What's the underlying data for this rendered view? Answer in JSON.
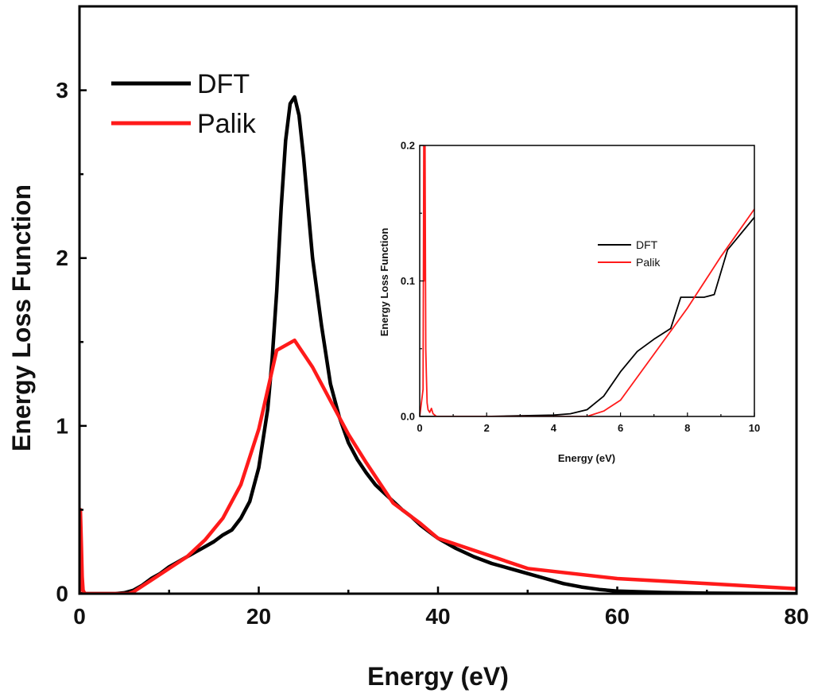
{
  "chart_data": [
    {
      "id": "main",
      "type": "line",
      "title": "",
      "xlabel": "Energy (eV)",
      "ylabel": "Energy Loss Function",
      "xlim": [
        0,
        80
      ],
      "ylim": [
        0,
        3.5
      ],
      "xticks": [
        0,
        20,
        40,
        60,
        80
      ],
      "xtick_labels": [
        "0",
        "20",
        "40",
        "60",
        "80"
      ],
      "yticks": [
        0,
        1,
        2,
        3
      ],
      "ytick_labels": [
        "0",
        "1",
        "2",
        "3"
      ],
      "grid": false,
      "legend_position": "top-left",
      "series": [
        {
          "name": "DFT",
          "color": "#000000",
          "x": [
            0,
            4,
            5,
            6,
            7,
            8,
            9,
            10,
            11,
            12,
            13,
            14,
            15,
            16,
            17,
            18,
            19,
            20,
            21,
            21.5,
            22,
            22.5,
            23,
            23.5,
            24,
            24.5,
            25,
            25.5,
            26,
            27,
            28,
            29,
            30,
            31,
            32,
            33,
            34,
            35,
            36,
            37,
            38,
            39,
            40,
            42,
            44,
            46,
            48,
            50,
            52,
            54,
            56,
            58,
            60,
            65,
            70,
            75,
            80
          ],
          "y": [
            0,
            0,
            0.005,
            0.02,
            0.05,
            0.09,
            0.12,
            0.16,
            0.19,
            0.22,
            0.25,
            0.28,
            0.31,
            0.35,
            0.38,
            0.45,
            0.55,
            0.75,
            1.1,
            1.4,
            1.8,
            2.3,
            2.7,
            2.92,
            2.96,
            2.85,
            2.6,
            2.3,
            2.0,
            1.6,
            1.25,
            1.05,
            0.9,
            0.8,
            0.72,
            0.65,
            0.6,
            0.55,
            0.5,
            0.46,
            0.41,
            0.37,
            0.33,
            0.27,
            0.22,
            0.18,
            0.15,
            0.12,
            0.09,
            0.06,
            0.04,
            0.025,
            0.015,
            0.007,
            0.003,
            0.001,
            0
          ]
        },
        {
          "name": "Palik",
          "color": "#ff1a1a",
          "x": [
            0,
            0.1,
            0.2,
            0.3,
            0.4,
            0.6,
            1,
            3,
            5.5,
            6,
            8,
            10,
            12,
            14,
            16,
            18,
            20,
            22,
            24,
            26,
            28,
            30,
            32,
            34,
            35,
            38,
            40,
            45,
            50,
            60,
            70,
            80
          ],
          "y": [
            0,
            0.5,
            0.3,
            0.1,
            0.02,
            0,
            0,
            0,
            0,
            0.01,
            0.08,
            0.15,
            0.22,
            0.32,
            0.45,
            0.65,
            0.98,
            1.45,
            1.51,
            1.35,
            1.15,
            0.95,
            0.78,
            0.62,
            0.54,
            0.42,
            0.33,
            0.24,
            0.15,
            0.09,
            0.06,
            0.03
          ]
        }
      ]
    },
    {
      "id": "inset",
      "type": "line",
      "title": "",
      "xlabel": "Energy (eV)",
      "ylabel": "Energy Loss Function",
      "xlim": [
        0,
        10
      ],
      "ylim": [
        0,
        0.2
      ],
      "xticks": [
        0,
        2,
        4,
        6,
        8,
        10
      ],
      "xtick_labels": [
        "0",
        "2",
        "4",
        "6",
        "8",
        "10"
      ],
      "yticks": [
        0,
        0.1,
        0.2
      ],
      "ytick_labels": [
        "0.0",
        "0.1",
        "0.2"
      ],
      "grid": false,
      "legend_position": "center-right",
      "series": [
        {
          "name": "DFT",
          "color": "#000000",
          "x": [
            0,
            2,
            4,
            4.5,
            5,
            5.5,
            6,
            6.5,
            7,
            7.5,
            7.8,
            8.5,
            8.8,
            9.2,
            10
          ],
          "y": [
            0,
            0,
            0.001,
            0.002,
            0.005,
            0.015,
            0.033,
            0.048,
            0.057,
            0.065,
            0.088,
            0.088,
            0.09,
            0.123,
            0.147
          ]
        },
        {
          "name": "Palik",
          "color": "#ff1a1a",
          "x": [
            0,
            0.1,
            0.12,
            0.14,
            0.16,
            0.18,
            0.2,
            0.22,
            0.25,
            0.3,
            0.35,
            0.4,
            0.5,
            5,
            5.5,
            6,
            7,
            8,
            9,
            10
          ],
          "y": [
            0,
            0.02,
            0.2,
            0.1,
            0.2,
            0.05,
            0.03,
            0.01,
            0.005,
            0.003,
            0.006,
            0.002,
            0,
            0,
            0.004,
            0.012,
            0.046,
            0.08,
            0.118,
            0.153
          ]
        }
      ]
    }
  ]
}
